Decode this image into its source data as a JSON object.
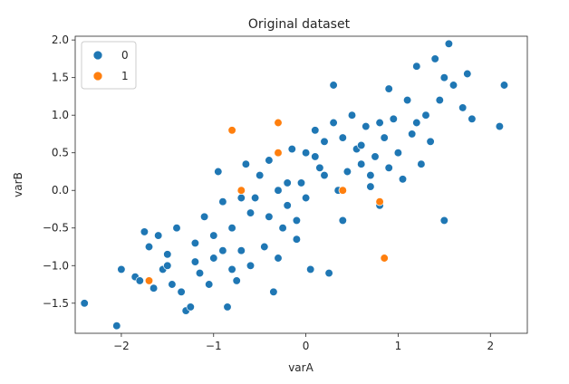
{
  "chart_data": {
    "type": "scatter",
    "title": "Original dataset",
    "xlabel": "varA",
    "ylabel": "varB",
    "xlim": [
      -2.5,
      2.4
    ],
    "ylim": [
      -1.9,
      2.05
    ],
    "xticks": [
      -2,
      -1,
      0,
      1,
      2
    ],
    "yticks": [
      -1.5,
      -1.0,
      -0.5,
      0.0,
      0.5,
      1.0,
      1.5,
      2.0
    ],
    "xtick_labels": [
      "−2",
      "−1",
      "0",
      "1",
      "2"
    ],
    "ytick_labels": [
      "−1.5",
      "−1.0",
      "−0.5",
      "0.0",
      "0.5",
      "1.0",
      "1.5",
      "2.0"
    ],
    "legend_placement": "top-left",
    "series": [
      {
        "name": "0",
        "color": "#1f77b4",
        "points": [
          [
            -2.4,
            -1.5
          ],
          [
            -2.05,
            -1.8
          ],
          [
            -2.0,
            -1.05
          ],
          [
            -1.85,
            -1.15
          ],
          [
            -1.8,
            -1.2
          ],
          [
            -1.75,
            -0.55
          ],
          [
            -1.7,
            -0.75
          ],
          [
            -1.65,
            -1.3
          ],
          [
            -1.6,
            -0.6
          ],
          [
            -1.55,
            -1.05
          ],
          [
            -1.5,
            -0.85
          ],
          [
            -1.45,
            -1.25
          ],
          [
            -1.4,
            -0.5
          ],
          [
            -1.35,
            -1.35
          ],
          [
            -1.3,
            -1.6
          ],
          [
            -1.25,
            -1.55
          ],
          [
            -1.2,
            -0.95
          ],
          [
            -1.15,
            -1.1
          ],
          [
            -1.1,
            -0.35
          ],
          [
            -1.05,
            -1.25
          ],
          [
            -1.0,
            -0.6
          ],
          [
            -0.95,
            0.25
          ],
          [
            -0.9,
            -0.15
          ],
          [
            -0.85,
            -1.55
          ],
          [
            -0.8,
            -1.05
          ],
          [
            -0.75,
            -1.2
          ],
          [
            -0.7,
            -0.8
          ],
          [
            -0.65,
            0.35
          ],
          [
            -0.6,
            -1.0
          ],
          [
            -0.55,
            -0.1
          ],
          [
            -0.5,
            0.2
          ],
          [
            -0.45,
            -0.75
          ],
          [
            -0.4,
            -0.35
          ],
          [
            -0.35,
            -1.35
          ],
          [
            -0.3,
            0.0
          ],
          [
            -0.25,
            -0.5
          ],
          [
            -0.2,
            -0.2
          ],
          [
            -0.15,
            0.55
          ],
          [
            -0.1,
            -0.65
          ],
          [
            -0.05,
            0.1
          ],
          [
            0.0,
            -0.1
          ],
          [
            0.05,
            -1.05
          ],
          [
            0.1,
            0.45
          ],
          [
            0.15,
            0.3
          ],
          [
            0.2,
            0.65
          ],
          [
            0.25,
            -1.1
          ],
          [
            0.3,
            1.4
          ],
          [
            0.35,
            0.0
          ],
          [
            0.4,
            0.7
          ],
          [
            0.45,
            0.25
          ],
          [
            0.5,
            1.0
          ],
          [
            0.55,
            0.55
          ],
          [
            0.6,
            0.35
          ],
          [
            0.65,
            0.85
          ],
          [
            0.7,
            0.05
          ],
          [
            0.75,
            0.45
          ],
          [
            0.8,
            -0.2
          ],
          [
            0.85,
            0.7
          ],
          [
            0.9,
            1.35
          ],
          [
            0.95,
            0.95
          ],
          [
            1.0,
            0.5
          ],
          [
            1.05,
            0.15
          ],
          [
            1.1,
            1.2
          ],
          [
            1.15,
            0.75
          ],
          [
            1.2,
            1.65
          ],
          [
            1.25,
            0.35
          ],
          [
            1.3,
            1.0
          ],
          [
            1.35,
            0.65
          ],
          [
            1.4,
            1.75
          ],
          [
            1.45,
            1.2
          ],
          [
            1.5,
            -0.4
          ],
          [
            1.55,
            1.95
          ],
          [
            1.6,
            1.4
          ],
          [
            1.7,
            1.1
          ],
          [
            1.75,
            1.55
          ],
          [
            1.8,
            0.95
          ],
          [
            2.1,
            0.85
          ],
          [
            2.15,
            1.4
          ],
          [
            -1.0,
            -0.9
          ],
          [
            -0.6,
            -0.3
          ],
          [
            -0.2,
            0.1
          ],
          [
            0.2,
            0.2
          ],
          [
            0.6,
            0.6
          ],
          [
            -0.4,
            0.4
          ],
          [
            0.0,
            0.5
          ],
          [
            0.4,
            -0.4
          ],
          [
            -0.8,
            -0.5
          ],
          [
            0.8,
            0.9
          ],
          [
            -1.2,
            -0.7
          ],
          [
            1.2,
            0.9
          ],
          [
            -0.3,
            -0.9
          ],
          [
            0.3,
            0.9
          ],
          [
            -0.7,
            -0.1
          ],
          [
            0.7,
            0.2
          ],
          [
            -1.5,
            -1.0
          ],
          [
            1.5,
            1.5
          ],
          [
            -0.9,
            -0.8
          ],
          [
            0.9,
            0.3
          ],
          [
            -0.1,
            -0.4
          ],
          [
            0.1,
            0.8
          ]
        ]
      },
      {
        "name": "1",
        "color": "#ff7f0e",
        "points": [
          [
            -1.7,
            -1.2
          ],
          [
            -0.8,
            0.8
          ],
          [
            -0.7,
            0.0
          ],
          [
            -0.3,
            0.9
          ],
          [
            -0.3,
            0.5
          ],
          [
            0.4,
            0.0
          ],
          [
            0.8,
            -0.15
          ],
          [
            0.85,
            -0.9
          ]
        ]
      }
    ]
  }
}
